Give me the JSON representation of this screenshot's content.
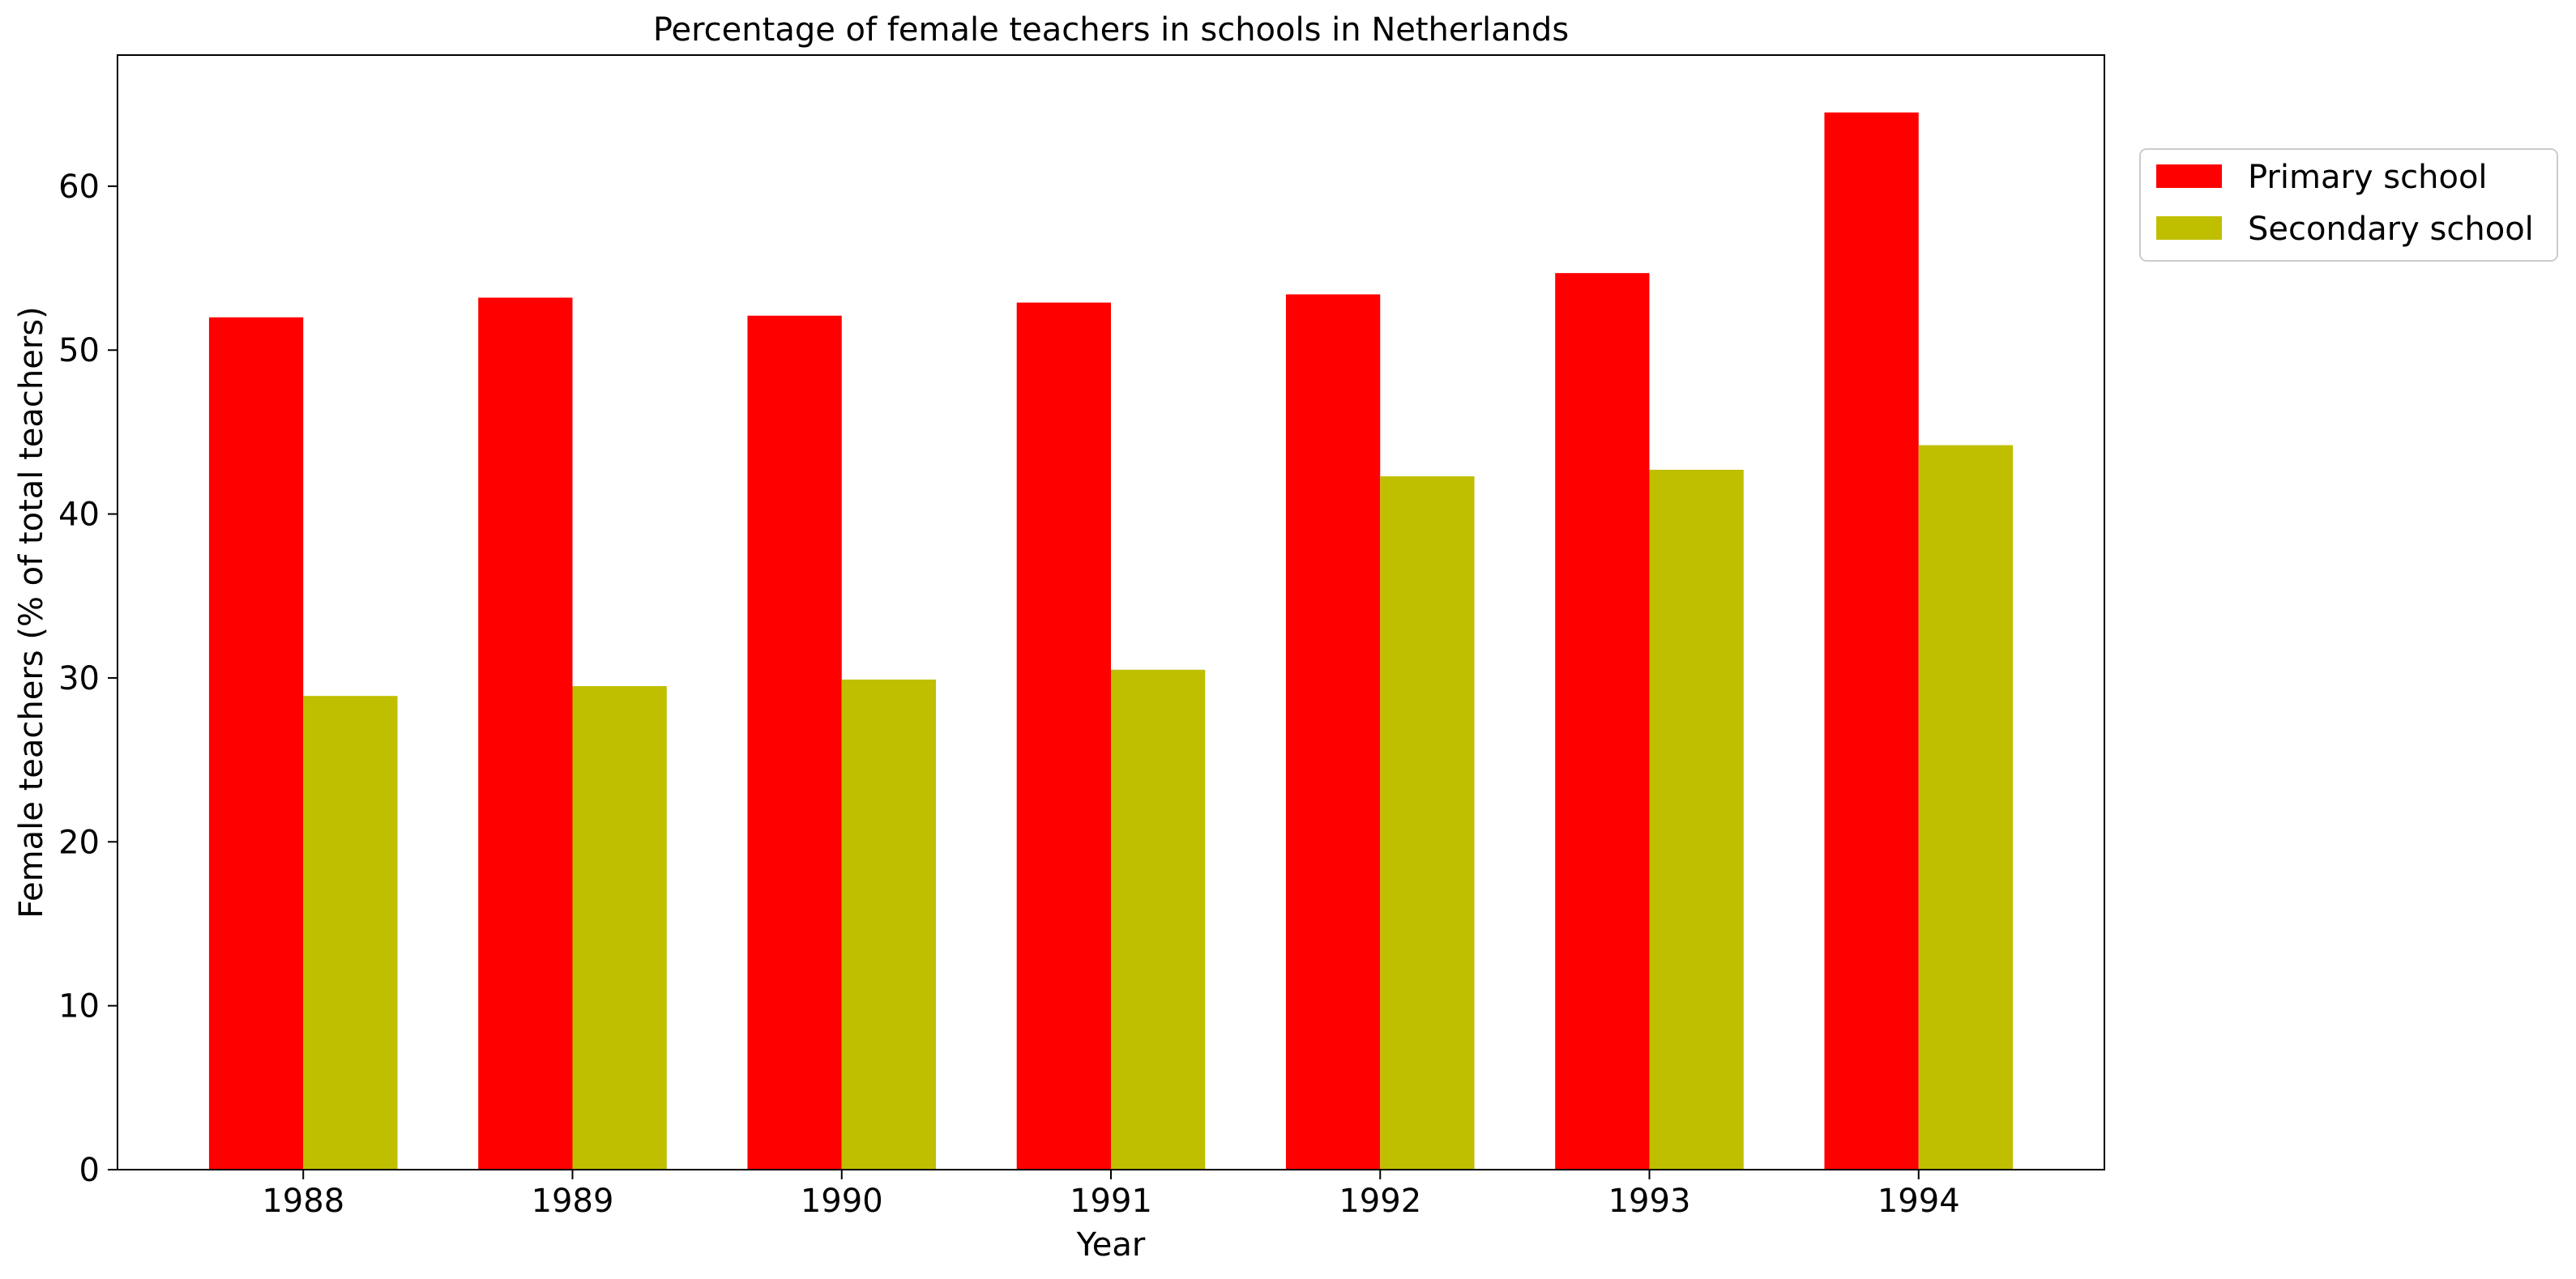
{
  "chart_data": {
    "type": "bar",
    "title": "Percentage of female teachers in schools in Netherlands",
    "xlabel": "Year",
    "ylabel": "Female teachers (% of total teachers)",
    "categories": [
      "1988",
      "1989",
      "1990",
      "1991",
      "1992",
      "1993",
      "1994"
    ],
    "series": [
      {
        "name": "Primary school",
        "color": "#ff0000",
        "values": [
          52.0,
          53.2,
          52.1,
          52.9,
          53.4,
          54.7,
          64.5
        ]
      },
      {
        "name": "Secondary school",
        "color": "#bfbf00",
        "values": [
          28.9,
          29.5,
          29.9,
          30.5,
          42.3,
          42.7,
          44.2
        ]
      }
    ],
    "ylim": [
      0,
      68
    ],
    "yticks": [
      0,
      10,
      20,
      30,
      40,
      50,
      60
    ],
    "grid": false,
    "legend_position": "outside-top-right"
  }
}
